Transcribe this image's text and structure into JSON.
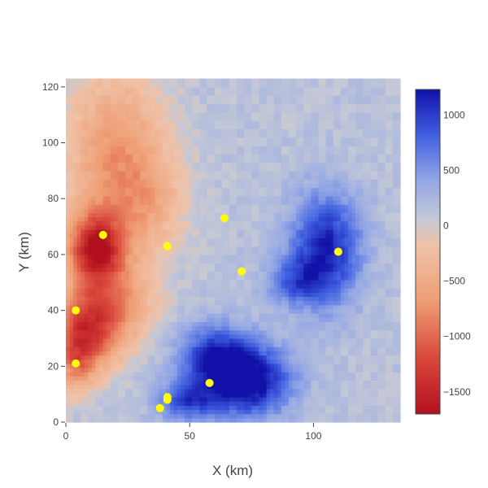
{
  "chart_data": {
    "type": "heatmap",
    "title": "",
    "xlabel": "X (km)",
    "ylabel": "Y (km)",
    "xlim": [
      0,
      135
    ],
    "ylim": [
      0,
      122
    ],
    "x_ticks": [
      {
        "value": 0,
        "label": "0"
      },
      {
        "value": 50,
        "label": "50"
      },
      {
        "value": 100,
        "label": "100"
      }
    ],
    "y_ticks": [
      {
        "value": 0,
        "label": "0"
      },
      {
        "value": 20,
        "label": "20"
      },
      {
        "value": 40,
        "label": "40"
      },
      {
        "value": 60,
        "label": "60"
      },
      {
        "value": 80,
        "label": "80"
      },
      {
        "value": 100,
        "label": "100"
      },
      {
        "value": 120,
        "label": "120"
      }
    ],
    "colorscale": {
      "name": "RdBu",
      "range": [
        -1700,
        1230
      ],
      "ticks": [
        {
          "value": 1000,
          "label": "1000"
        },
        {
          "value": 500,
          "label": "500"
        },
        {
          "value": 0,
          "label": "0"
        },
        {
          "value": -500,
          "label": "−500"
        },
        {
          "value": -1000,
          "label": "−1000"
        },
        {
          "value": -1500,
          "label": "−1500"
        }
      ],
      "stops": [
        {
          "t": 0.0,
          "color": "#b2101e"
        },
        {
          "t": 0.17,
          "color": "#d9473a"
        },
        {
          "t": 0.35,
          "color": "#ef9e74"
        },
        {
          "t": 0.52,
          "color": "#f0c2a8"
        },
        {
          "t": 0.6,
          "color": "#c5c9d6"
        },
        {
          "t": 0.72,
          "color": "#92a6e6"
        },
        {
          "t": 0.86,
          "color": "#3f5fe0"
        },
        {
          "t": 1.0,
          "color": "#1111aa"
        }
      ]
    },
    "field_features": [
      {
        "x": 12,
        "y": 62,
        "sx": 8,
        "sy": 9,
        "amp": -1650
      },
      {
        "x": 10,
        "y": 35,
        "sx": 10,
        "sy": 10,
        "amp": -1400
      },
      {
        "x": 4,
        "y": 22,
        "sx": 6,
        "sy": 8,
        "amp": -800
      },
      {
        "x": 20,
        "y": 95,
        "sx": 14,
        "sy": 22,
        "amp": -850
      },
      {
        "x": 35,
        "y": 78,
        "sx": 10,
        "sy": 12,
        "amp": -400
      },
      {
        "x": 25,
        "y": 45,
        "sx": 10,
        "sy": 10,
        "amp": -450
      },
      {
        "x": 72,
        "y": 15,
        "sx": 13,
        "sy": 9,
        "amp": 1300
      },
      {
        "x": 60,
        "y": 25,
        "sx": 10,
        "sy": 8,
        "amp": 700
      },
      {
        "x": 48,
        "y": 8,
        "sx": 8,
        "sy": 5,
        "amp": 700
      },
      {
        "x": 105,
        "y": 62,
        "sx": 10,
        "sy": 14,
        "amp": 1050
      },
      {
        "x": 92,
        "y": 50,
        "sx": 8,
        "sy": 6,
        "amp": 550
      }
    ],
    "background_value": 130,
    "markers": [
      {
        "x": 15,
        "y": 67
      },
      {
        "x": 41,
        "y": 63
      },
      {
        "x": 64,
        "y": 73
      },
      {
        "x": 71,
        "y": 54
      },
      {
        "x": 110,
        "y": 61
      },
      {
        "x": 4,
        "y": 40
      },
      {
        "x": 4,
        "y": 21
      },
      {
        "x": 58,
        "y": 14
      },
      {
        "x": 41,
        "y": 9
      },
      {
        "x": 41,
        "y": 8
      },
      {
        "x": 38,
        "y": 5
      }
    ],
    "marker_color": "#ffff00"
  }
}
